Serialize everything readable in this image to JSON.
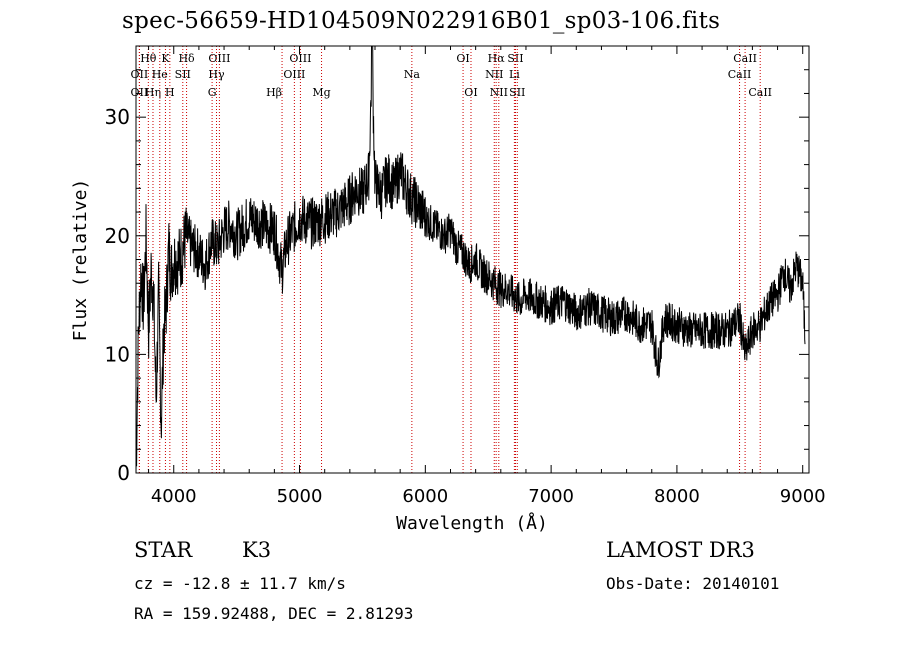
{
  "header": {
    "title": "spec-56659-HD104509N022916B01_sp03-106.fits"
  },
  "footer": {
    "class": "STAR",
    "subclass": "K3",
    "survey": "LAMOST DR3",
    "cz": "cz = -12.8 ± 11.7 km/s",
    "obs_date": "Obs-Date: 20140101",
    "radec": "RA = 159.92488, DEC =   2.81293"
  },
  "chart_data": {
    "type": "line",
    "title": "spec-56659-HD104509N022916B01_sp03-106.fits",
    "xlabel": "Wavelength (Å)",
    "ylabel": "Flux (relative)",
    "xlim": [
      3700,
      9050
    ],
    "ylim": [
      0,
      36
    ],
    "xticks": [
      4000,
      5000,
      6000,
      7000,
      8000,
      9000
    ],
    "yticks": [
      0,
      10,
      20,
      30
    ],
    "grid": false,
    "line_color": "#000000",
    "marker_color": "#cc0000",
    "series": [
      {
        "name": "flux",
        "x": [
          3700,
          3720,
          3740,
          3760,
          3780,
          3800,
          3820,
          3840,
          3860,
          3880,
          3900,
          3920,
          3940,
          3960,
          3980,
          4000,
          4050,
          4100,
          4150,
          4200,
          4250,
          4300,
          4350,
          4400,
          4450,
          4500,
          4600,
          4700,
          4800,
          4860,
          4900,
          5000,
          5100,
          5200,
          5300,
          5400,
          5450,
          5500,
          5550,
          5577,
          5600,
          5650,
          5700,
          5750,
          5800,
          5850,
          5900,
          5950,
          6000,
          6050,
          6100,
          6150,
          6200,
          6250,
          6300,
          6350,
          6400,
          6450,
          6500,
          6550,
          6600,
          6650,
          6700,
          6750,
          6800,
          6900,
          7000,
          7100,
          7200,
          7300,
          7400,
          7500,
          7600,
          7700,
          7800,
          7850,
          7900,
          8000,
          8100,
          8200,
          8300,
          8400,
          8450,
          8500,
          8542,
          8600,
          8662,
          8700,
          8750,
          8800,
          8850,
          8900,
          8950,
          9000,
          9020
        ],
        "y": [
          0,
          12,
          17,
          14,
          20,
          12,
          17,
          15,
          6,
          15,
          4,
          12,
          14,
          19,
          17,
          18,
          18,
          20,
          19,
          18.5,
          17.5,
          19.5,
          19,
          20.5,
          21,
          20,
          21.5,
          21,
          20.5,
          17,
          19.5,
          21.5,
          21,
          21.5,
          22,
          23,
          24,
          23.5,
          25,
          35,
          24.5,
          23.5,
          25,
          24,
          25.5,
          24,
          23,
          22.5,
          21.5,
          21,
          20.5,
          20,
          20.5,
          19,
          18.5,
          17.5,
          18,
          17,
          16.5,
          16,
          15.5,
          15.5,
          15,
          14.5,
          15,
          14.5,
          14,
          14.5,
          13.5,
          14,
          13.5,
          13,
          13.5,
          12.5,
          12.5,
          9,
          13,
          12.5,
          12,
          12,
          12,
          12,
          12.5,
          13,
          10,
          12,
          12.5,
          13.5,
          14.5,
          15,
          17,
          15.5,
          17.5,
          16,
          11
        ]
      }
    ],
    "line_markers": [
      {
        "label": "Hθ",
        "wl": 3798,
        "row": 1,
        "anchor": "middle"
      },
      {
        "label": "OII",
        "wl": 3727,
        "row": 2,
        "anchor": "middle"
      },
      {
        "label": "OII",
        "wl": 3727,
        "row": 3,
        "anchor": "middle"
      },
      {
        "label": "Hη",
        "wl": 3835,
        "row": 3,
        "anchor": "middle"
      },
      {
        "label": "He",
        "wl": 3889,
        "row": 2,
        "anchor": "middle"
      },
      {
        "label": "K",
        "wl": 3934,
        "row": 1,
        "anchor": "middle"
      },
      {
        "label": "H",
        "wl": 3969,
        "row": 3,
        "anchor": "middle"
      },
      {
        "label": "SII",
        "wl": 4072,
        "row": 2,
        "anchor": "middle"
      },
      {
        "label": "Hδ",
        "wl": 4102,
        "row": 1,
        "anchor": "middle"
      },
      {
        "label": "OIII",
        "wl": 4363,
        "row": 1,
        "anchor": "middle"
      },
      {
        "label": "Hγ",
        "wl": 4340,
        "row": 2,
        "anchor": "middle"
      },
      {
        "label": "G",
        "wl": 4305,
        "row": 3,
        "anchor": "middle"
      },
      {
        "label": "Hβ",
        "wl": 4861,
        "row": 3,
        "anchor": "end"
      },
      {
        "label": "OIII",
        "wl": 5007,
        "row": 1,
        "anchor": "middle"
      },
      {
        "label": "OIII",
        "wl": 4959,
        "row": 2,
        "anchor": "middle"
      },
      {
        "label": "Mg",
        "wl": 5175,
        "row": 3,
        "anchor": "middle"
      },
      {
        "label": "Na",
        "wl": 5893,
        "row": 2,
        "anchor": "middle"
      },
      {
        "label": "OI",
        "wl": 6300,
        "row": 1,
        "anchor": "middle"
      },
      {
        "label": "OI",
        "wl": 6363,
        "row": 3,
        "anchor": "middle"
      },
      {
        "label": "Hα",
        "wl": 6563,
        "row": 1,
        "anchor": "middle"
      },
      {
        "label": "NII",
        "wl": 6548,
        "row": 2,
        "anchor": "middle"
      },
      {
        "label": "NII",
        "wl": 6584,
        "row": 3,
        "anchor": "middle"
      },
      {
        "label": "SII",
        "wl": 6717,
        "row": 1,
        "anchor": "middle"
      },
      {
        "label": "Li",
        "wl": 6708,
        "row": 2,
        "anchor": "middle"
      },
      {
        "label": "SII",
        "wl": 6731,
        "row": 3,
        "anchor": "middle"
      },
      {
        "label": "CaII",
        "wl": 8542,
        "row": 1,
        "anchor": "middle"
      },
      {
        "label": "CaII",
        "wl": 8498,
        "row": 2,
        "anchor": "middle"
      },
      {
        "label": "CaII",
        "wl": 8662,
        "row": 3,
        "anchor": "middle"
      }
    ]
  }
}
